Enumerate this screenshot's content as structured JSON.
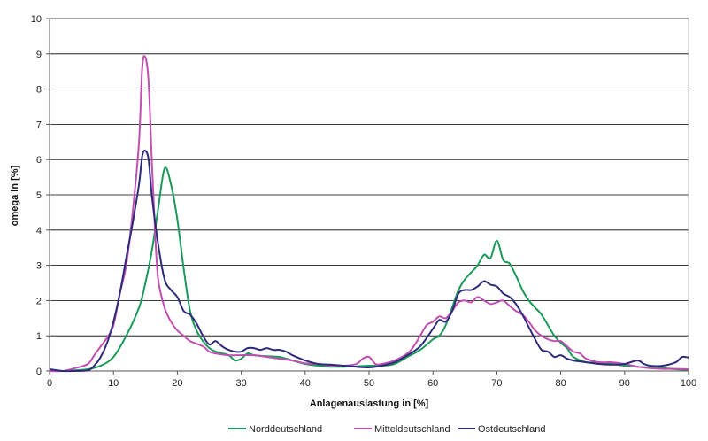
{
  "chart_data": {
    "type": "line",
    "title": "",
    "xlabel": "Anlagenauslastung in [%]",
    "ylabel": "omega in [%]",
    "xlim": [
      0,
      100
    ],
    "ylim": [
      0,
      10
    ],
    "x_ticks": [
      0,
      10,
      20,
      30,
      40,
      50,
      60,
      70,
      80,
      90,
      100
    ],
    "y_ticks": [
      0,
      1,
      2,
      3,
      4,
      5,
      6,
      7,
      8,
      9,
      10
    ],
    "grid": "horizontal",
    "legend_position": "bottom",
    "series": [
      {
        "name": "Norddeutschland",
        "color": "#1a9a5a",
        "points": [
          [
            0,
            0.05
          ],
          [
            2,
            0.0
          ],
          [
            4,
            0.02
          ],
          [
            6,
            0.05
          ],
          [
            8,
            0.15
          ],
          [
            10,
            0.4
          ],
          [
            12,
            1.0
          ],
          [
            14,
            1.8
          ],
          [
            15,
            2.5
          ],
          [
            16,
            3.4
          ],
          [
            17,
            4.6
          ],
          [
            18,
            5.75
          ],
          [
            19,
            5.3
          ],
          [
            20,
            4.3
          ],
          [
            21,
            2.9
          ],
          [
            22,
            1.7
          ],
          [
            23,
            1.15
          ],
          [
            24,
            0.85
          ],
          [
            25,
            0.65
          ],
          [
            26,
            0.55
          ],
          [
            28,
            0.45
          ],
          [
            29,
            0.3
          ],
          [
            30,
            0.35
          ],
          [
            31,
            0.5
          ],
          [
            32,
            0.45
          ],
          [
            34,
            0.42
          ],
          [
            36,
            0.4
          ],
          [
            38,
            0.3
          ],
          [
            40,
            0.2
          ],
          [
            42,
            0.15
          ],
          [
            44,
            0.12
          ],
          [
            46,
            0.12
          ],
          [
            48,
            0.13
          ],
          [
            50,
            0.15
          ],
          [
            52,
            0.15
          ],
          [
            54,
            0.2
          ],
          [
            56,
            0.4
          ],
          [
            58,
            0.6
          ],
          [
            60,
            0.9
          ],
          [
            61,
            1.0
          ],
          [
            62,
            1.3
          ],
          [
            63,
            1.8
          ],
          [
            64,
            2.3
          ],
          [
            65,
            2.6
          ],
          [
            66,
            2.8
          ],
          [
            67,
            3.0
          ],
          [
            68,
            3.3
          ],
          [
            69,
            3.2
          ],
          [
            70,
            3.7
          ],
          [
            71,
            3.15
          ],
          [
            72,
            3.05
          ],
          [
            73,
            2.7
          ],
          [
            74,
            2.3
          ],
          [
            75,
            2.0
          ],
          [
            76,
            1.8
          ],
          [
            77,
            1.6
          ],
          [
            78,
            1.3
          ],
          [
            79,
            1.0
          ],
          [
            80,
            0.8
          ],
          [
            81,
            0.65
          ],
          [
            82,
            0.4
          ],
          [
            84,
            0.25
          ],
          [
            86,
            0.25
          ],
          [
            88,
            0.2
          ],
          [
            90,
            0.15
          ],
          [
            92,
            0.12
          ],
          [
            94,
            0.1
          ],
          [
            96,
            0.08
          ],
          [
            98,
            0.05
          ],
          [
            100,
            0.03
          ]
        ]
      },
      {
        "name": "Mitteldeutschland",
        "color": "#c04fb0",
        "points": [
          [
            0,
            0.0
          ],
          [
            2,
            0.0
          ],
          [
            4,
            0.08
          ],
          [
            6,
            0.2
          ],
          [
            7,
            0.45
          ],
          [
            8,
            0.7
          ],
          [
            9,
            0.95
          ],
          [
            10,
            1.3
          ],
          [
            11,
            2.2
          ],
          [
            12,
            3.0
          ],
          [
            13,
            4.5
          ],
          [
            14,
            6.5
          ],
          [
            14.5,
            8.6
          ],
          [
            15,
            8.9
          ],
          [
            15.5,
            8.2
          ],
          [
            16,
            6.0
          ],
          [
            16.5,
            4.0
          ],
          [
            17,
            2.6
          ],
          [
            18,
            1.8
          ],
          [
            19,
            1.4
          ],
          [
            20,
            1.15
          ],
          [
            21,
            1.0
          ],
          [
            22,
            0.85
          ],
          [
            24,
            0.7
          ],
          [
            25,
            0.55
          ],
          [
            26,
            0.5
          ],
          [
            28,
            0.45
          ],
          [
            30,
            0.45
          ],
          [
            32,
            0.45
          ],
          [
            34,
            0.4
          ],
          [
            36,
            0.35
          ],
          [
            38,
            0.3
          ],
          [
            40,
            0.22
          ],
          [
            42,
            0.2
          ],
          [
            44,
            0.15
          ],
          [
            46,
            0.15
          ],
          [
            48,
            0.2
          ],
          [
            49,
            0.35
          ],
          [
            50,
            0.4
          ],
          [
            51,
            0.2
          ],
          [
            52,
            0.2
          ],
          [
            54,
            0.3
          ],
          [
            56,
            0.5
          ],
          [
            57,
            0.7
          ],
          [
            58,
            1.0
          ],
          [
            59,
            1.3
          ],
          [
            60,
            1.4
          ],
          [
            61,
            1.55
          ],
          [
            62,
            1.5
          ],
          [
            63,
            1.7
          ],
          [
            64,
            1.95
          ],
          [
            65,
            2.0
          ],
          [
            66,
            1.95
          ],
          [
            67,
            2.1
          ],
          [
            68,
            2.0
          ],
          [
            69,
            1.9
          ],
          [
            70,
            1.95
          ],
          [
            71,
            2.0
          ],
          [
            72,
            1.85
          ],
          [
            73,
            1.7
          ],
          [
            74,
            1.6
          ],
          [
            75,
            1.4
          ],
          [
            76,
            1.15
          ],
          [
            77,
            1.0
          ],
          [
            78,
            0.9
          ],
          [
            79,
            0.85
          ],
          [
            80,
            0.85
          ],
          [
            81,
            0.7
          ],
          [
            82,
            0.55
          ],
          [
            83,
            0.5
          ],
          [
            84,
            0.35
          ],
          [
            86,
            0.25
          ],
          [
            88,
            0.25
          ],
          [
            90,
            0.2
          ],
          [
            92,
            0.12
          ],
          [
            94,
            0.08
          ],
          [
            96,
            0.06
          ],
          [
            98,
            0.06
          ],
          [
            100,
            0.05
          ]
        ]
      },
      {
        "name": "Ostdeutschland",
        "color": "#2e2a7a",
        "points": [
          [
            0,
            0.05
          ],
          [
            2,
            0.0
          ],
          [
            4,
            0.0
          ],
          [
            6,
            0.02
          ],
          [
            7,
            0.15
          ],
          [
            8,
            0.4
          ],
          [
            9,
            0.8
          ],
          [
            10,
            1.4
          ],
          [
            11,
            2.2
          ],
          [
            12,
            3.2
          ],
          [
            13,
            4.2
          ],
          [
            14,
            5.3
          ],
          [
            14.5,
            6.1
          ],
          [
            15,
            6.25
          ],
          [
            15.5,
            6.0
          ],
          [
            16,
            5.0
          ],
          [
            17,
            3.6
          ],
          [
            18,
            2.6
          ],
          [
            19,
            2.3
          ],
          [
            20,
            2.1
          ],
          [
            21,
            1.7
          ],
          [
            22,
            1.6
          ],
          [
            23,
            1.35
          ],
          [
            24,
            1.0
          ],
          [
            25,
            0.75
          ],
          [
            26,
            0.85
          ],
          [
            27,
            0.7
          ],
          [
            28,
            0.6
          ],
          [
            29,
            0.55
          ],
          [
            30,
            0.55
          ],
          [
            31,
            0.65
          ],
          [
            32,
            0.65
          ],
          [
            33,
            0.6
          ],
          [
            34,
            0.65
          ],
          [
            35,
            0.6
          ],
          [
            36,
            0.6
          ],
          [
            37,
            0.55
          ],
          [
            38,
            0.45
          ],
          [
            40,
            0.3
          ],
          [
            42,
            0.2
          ],
          [
            44,
            0.18
          ],
          [
            46,
            0.15
          ],
          [
            48,
            0.12
          ],
          [
            50,
            0.1
          ],
          [
            52,
            0.15
          ],
          [
            54,
            0.25
          ],
          [
            56,
            0.45
          ],
          [
            58,
            0.7
          ],
          [
            60,
            1.2
          ],
          [
            61,
            1.45
          ],
          [
            62,
            1.4
          ],
          [
            63,
            1.7
          ],
          [
            64,
            2.2
          ],
          [
            65,
            2.3
          ],
          [
            66,
            2.3
          ],
          [
            67,
            2.4
          ],
          [
            68,
            2.55
          ],
          [
            69,
            2.45
          ],
          [
            70,
            2.4
          ],
          [
            71,
            2.2
          ],
          [
            72,
            2.1
          ],
          [
            73,
            1.9
          ],
          [
            74,
            1.6
          ],
          [
            75,
            1.25
          ],
          [
            76,
            0.9
          ],
          [
            77,
            0.6
          ],
          [
            78,
            0.55
          ],
          [
            79,
            0.4
          ],
          [
            80,
            0.45
          ],
          [
            81,
            0.35
          ],
          [
            82,
            0.3
          ],
          [
            84,
            0.25
          ],
          [
            86,
            0.2
          ],
          [
            88,
            0.18
          ],
          [
            90,
            0.2
          ],
          [
            92,
            0.3
          ],
          [
            93,
            0.2
          ],
          [
            94,
            0.15
          ],
          [
            96,
            0.15
          ],
          [
            98,
            0.25
          ],
          [
            99,
            0.4
          ],
          [
            100,
            0.38
          ]
        ]
      }
    ]
  }
}
